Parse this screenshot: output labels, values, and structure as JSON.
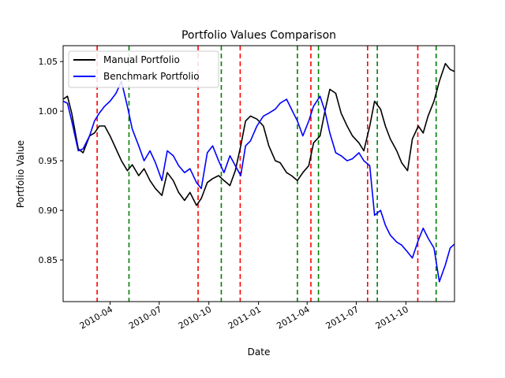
{
  "chart_data": {
    "type": "line",
    "title": "Portfolio Values Comparison",
    "xlabel": "Date",
    "ylabel": "Portfolio Value",
    "x_range": [
      "2010-01-04",
      "2011-12-30"
    ],
    "ylim": [
      0.808,
      1.066
    ],
    "x_ticks": [
      {
        "date": "2010-04-01",
        "label": "2010-04"
      },
      {
        "date": "2010-07-01",
        "label": "2010-07"
      },
      {
        "date": "2010-10-01",
        "label": "2010-10"
      },
      {
        "date": "2011-01-01",
        "label": "2011-01"
      },
      {
        "date": "2011-04-01",
        "label": "2011-04"
      },
      {
        "date": "2011-07-01",
        "label": "2011-07"
      },
      {
        "date": "2011-10-01",
        "label": "2011-10"
      }
    ],
    "y_ticks": [
      {
        "value": 0.85,
        "label": "0.85"
      },
      {
        "value": 0.9,
        "label": "0.90"
      },
      {
        "value": 0.95,
        "label": "0.95"
      },
      {
        "value": 1.0,
        "label": "1.00"
      },
      {
        "value": 1.05,
        "label": "1.05"
      }
    ],
    "grid": false,
    "legend_position": "top-left",
    "series": [
      {
        "name": "Manual Portfolio",
        "color": "#000000",
        "x": [
          "2010-01-04",
          "2010-01-12",
          "2010-01-20",
          "2010-02-01",
          "2010-02-10",
          "2010-02-22",
          "2010-03-03",
          "2010-03-12",
          "2010-03-22",
          "2010-04-01",
          "2010-04-12",
          "2010-04-22",
          "2010-05-03",
          "2010-05-12",
          "2010-05-24",
          "2010-06-03",
          "2010-06-14",
          "2010-06-24",
          "2010-07-06",
          "2010-07-16",
          "2010-07-27",
          "2010-08-06",
          "2010-08-17",
          "2010-08-27",
          "2010-09-08",
          "2010-09-17",
          "2010-09-28",
          "2010-10-08",
          "2010-10-19",
          "2010-10-29",
          "2010-11-09",
          "2010-11-19",
          "2010-11-29",
          "2010-12-08",
          "2010-12-17",
          "2010-12-29",
          "2011-01-10",
          "2011-01-20",
          "2011-02-01",
          "2011-02-10",
          "2011-02-22",
          "2011-03-03",
          "2011-03-14",
          "2011-03-24",
          "2011-04-04",
          "2011-04-13",
          "2011-04-25",
          "2011-05-04",
          "2011-05-13",
          "2011-05-24",
          "2011-06-03",
          "2011-06-14",
          "2011-06-24",
          "2011-07-06",
          "2011-07-15",
          "2011-07-26",
          "2011-08-04",
          "2011-08-15",
          "2011-08-24",
          "2011-09-02",
          "2011-09-14",
          "2011-09-23",
          "2011-10-04",
          "2011-10-13",
          "2011-10-24",
          "2011-11-02",
          "2011-11-11",
          "2011-11-22",
          "2011-12-02",
          "2011-12-13",
          "2011-12-22",
          "2011-12-30"
        ],
        "values": [
          1.012,
          1.015,
          0.998,
          0.962,
          0.958,
          0.975,
          0.978,
          0.985,
          0.985,
          0.975,
          0.962,
          0.95,
          0.94,
          0.946,
          0.935,
          0.942,
          0.93,
          0.922,
          0.915,
          0.938,
          0.93,
          0.918,
          0.91,
          0.918,
          0.905,
          0.912,
          0.928,
          0.932,
          0.935,
          0.93,
          0.925,
          0.94,
          0.965,
          0.99,
          0.995,
          0.992,
          0.985,
          0.965,
          0.95,
          0.948,
          0.938,
          0.935,
          0.93,
          0.938,
          0.945,
          0.968,
          0.975,
          1.0,
          1.022,
          1.018,
          0.998,
          0.985,
          0.975,
          0.968,
          0.96,
          0.985,
          1.01,
          1.002,
          0.985,
          0.972,
          0.96,
          0.948,
          0.94,
          0.972,
          0.985,
          0.978,
          0.995,
          1.01,
          1.03,
          1.048,
          1.042,
          1.04
        ]
      },
      {
        "name": "Benchmark Portfolio",
        "color": "#0000ff",
        "x": [
          "2010-01-04",
          "2010-01-12",
          "2010-01-20",
          "2010-02-01",
          "2010-02-10",
          "2010-02-22",
          "2010-03-03",
          "2010-03-12",
          "2010-03-22",
          "2010-04-01",
          "2010-04-12",
          "2010-04-22",
          "2010-05-03",
          "2010-05-12",
          "2010-05-24",
          "2010-06-03",
          "2010-06-14",
          "2010-06-24",
          "2010-07-06",
          "2010-07-16",
          "2010-07-27",
          "2010-08-06",
          "2010-08-17",
          "2010-08-27",
          "2010-09-08",
          "2010-09-17",
          "2010-09-28",
          "2010-10-08",
          "2010-10-19",
          "2010-10-29",
          "2010-11-09",
          "2010-11-19",
          "2010-11-29",
          "2010-12-08",
          "2010-12-17",
          "2010-12-29",
          "2011-01-10",
          "2011-01-20",
          "2011-02-01",
          "2011-02-10",
          "2011-02-22",
          "2011-03-03",
          "2011-03-14",
          "2011-03-24",
          "2011-04-04",
          "2011-04-13",
          "2011-04-25",
          "2011-05-04",
          "2011-05-13",
          "2011-05-24",
          "2011-06-03",
          "2011-06-14",
          "2011-06-24",
          "2011-07-06",
          "2011-07-15",
          "2011-07-26",
          "2011-08-04",
          "2011-08-15",
          "2011-08-24",
          "2011-09-02",
          "2011-09-14",
          "2011-09-23",
          "2011-10-04",
          "2011-10-13",
          "2011-10-24",
          "2011-11-02",
          "2011-11-11",
          "2011-11-22",
          "2011-12-02",
          "2011-12-13",
          "2011-12-22",
          "2011-12-30"
        ],
        "values": [
          1.01,
          1.008,
          0.99,
          0.96,
          0.962,
          0.975,
          0.99,
          0.998,
          1.005,
          1.01,
          1.018,
          1.03,
          1.005,
          0.982,
          0.965,
          0.95,
          0.96,
          0.948,
          0.93,
          0.96,
          0.955,
          0.945,
          0.938,
          0.942,
          0.928,
          0.922,
          0.958,
          0.965,
          0.95,
          0.938,
          0.955,
          0.945,
          0.935,
          0.965,
          0.97,
          0.985,
          0.995,
          0.998,
          1.002,
          1.008,
          1.012,
          1.002,
          0.99,
          0.975,
          0.99,
          1.005,
          1.015,
          1.0,
          0.978,
          0.958,
          0.955,
          0.95,
          0.952,
          0.958,
          0.95,
          0.945,
          0.895,
          0.9,
          0.885,
          0.875,
          0.868,
          0.865,
          0.858,
          0.852,
          0.87,
          0.882,
          0.872,
          0.862,
          0.828,
          0.845,
          0.862,
          0.866
        ]
      }
    ],
    "vertical_lines": [
      {
        "date": "2010-03-08",
        "color": "#ff0000",
        "style": "dashed"
      },
      {
        "date": "2010-05-06",
        "color": "#008000",
        "style": "dashed"
      },
      {
        "date": "2010-09-11",
        "color": "#ff0000",
        "style": "dashed"
      },
      {
        "date": "2010-10-24",
        "color": "#008000",
        "style": "dashed"
      },
      {
        "date": "2010-11-28",
        "color": "#ff0000",
        "style": "dashed"
      },
      {
        "date": "2011-03-14",
        "color": "#008000",
        "style": "dashed"
      },
      {
        "date": "2011-04-08",
        "color": "#ff0000",
        "style": "dashed"
      },
      {
        "date": "2011-04-22",
        "color": "#008000",
        "style": "dashed"
      },
      {
        "date": "2011-07-22",
        "color": "#ff0000",
        "style": "dashed"
      },
      {
        "date": "2011-08-09",
        "color": "#008000",
        "style": "dashed"
      },
      {
        "date": "2011-10-23",
        "color": "#ff0000",
        "style": "dashed"
      },
      {
        "date": "2011-11-26",
        "color": "#008000",
        "style": "dashed"
      }
    ]
  }
}
